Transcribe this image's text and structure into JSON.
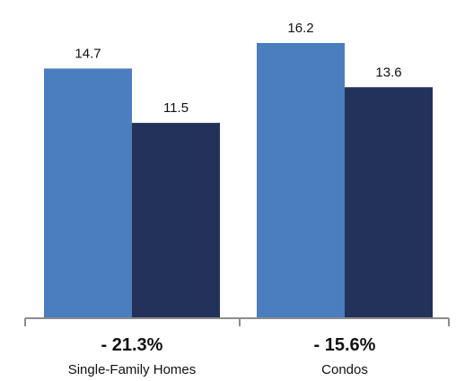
{
  "chart_data": {
    "type": "bar",
    "categories": [
      "Single-Family Homes",
      "Condos"
    ],
    "series": [
      {
        "values": [
          14.7,
          16.2
        ],
        "color": "#4a7ebf"
      },
      {
        "values": [
          11.5,
          13.6
        ],
        "color": "#233258"
      }
    ],
    "changes": [
      "- 21.3%",
      "- 15.6%"
    ],
    "ylim": [
      0,
      16.2
    ],
    "grid": false,
    "axis_color": "#8c8c8c"
  }
}
